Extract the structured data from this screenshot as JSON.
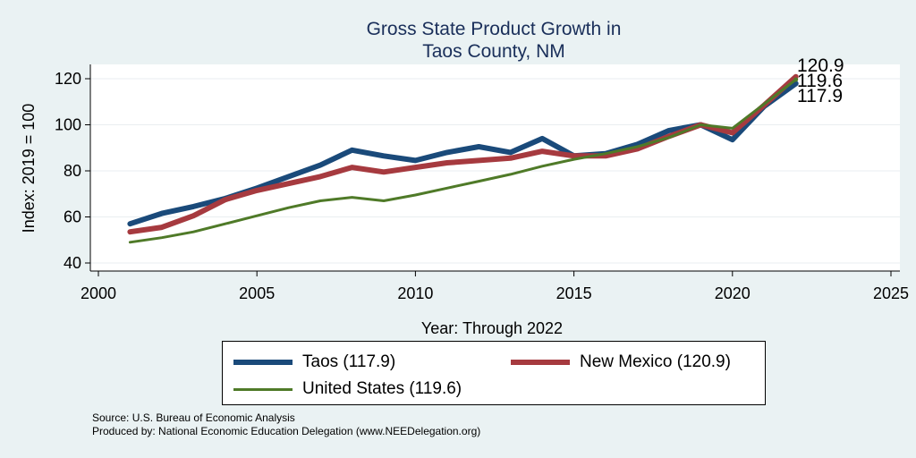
{
  "chart_data": {
    "type": "line",
    "title_lines": [
      "Gross State Product Growth in",
      "Taos County, NM"
    ],
    "xlabel": "Year: Through 2022",
    "ylabel": "Index: 2019 = 100",
    "xlim": [
      2000,
      2025
    ],
    "ylim": [
      40,
      125
    ],
    "xticks": [
      2000,
      2005,
      2010,
      2015,
      2020,
      2025
    ],
    "yticks": [
      40,
      60,
      80,
      100,
      120
    ],
    "grid": "horizontal",
    "x": [
      2001,
      2002,
      2003,
      2004,
      2005,
      2006,
      2007,
      2008,
      2009,
      2010,
      2011,
      2012,
      2013,
      2014,
      2015,
      2016,
      2017,
      2018,
      2019,
      2020,
      2021,
      2022
    ],
    "series": [
      {
        "name": "Taos",
        "legend": "Taos  (117.9)",
        "color": "#1a4a7a",
        "width": 6,
        "end_label": "117.9",
        "values": [
          57,
          61.5,
          64.5,
          68,
          72.5,
          77.5,
          82.5,
          89,
          86.5,
          84.5,
          88,
          90.5,
          88,
          94,
          86.5,
          87.5,
          91.5,
          97.5,
          100,
          93.5,
          108,
          117.9
        ]
      },
      {
        "name": "New Mexico",
        "legend": "New Mexico (120.9)",
        "color": "#a63a3f",
        "width": 6,
        "end_label": "120.9",
        "values": [
          53.5,
          55.5,
          60.5,
          67.5,
          71.5,
          74.5,
          77.5,
          81.5,
          79.5,
          81.5,
          83.5,
          84.5,
          85.5,
          88.5,
          86.5,
          86.5,
          89.5,
          95,
          100,
          96.5,
          108.5,
          120.9
        ]
      },
      {
        "name": "United States",
        "legend": "United States (119.6)",
        "color": "#4f7a28",
        "width": 3,
        "end_label": "119.6",
        "values": [
          49,
          51,
          53.5,
          57,
          60.5,
          64,
          67,
          68.5,
          67,
          69.5,
          72.5,
          75.5,
          78.5,
          82,
          85,
          87.5,
          90.5,
          94.5,
          100,
          98.5,
          109,
          119.6
        ]
      }
    ]
  },
  "source_lines": [
    "Source: U.S. Bureau of Economic Analysis",
    "Produced by: National Economic Education Delegation (www.NEEDelegation.org)"
  ]
}
